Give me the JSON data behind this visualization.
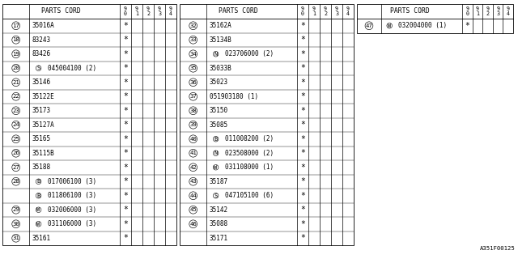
{
  "bg_color": "#ffffff",
  "text_color": "#000000",
  "footer": "A351F00125",
  "col_headers": [
    "9\n0",
    "9\n1",
    "9\n2",
    "9\n3",
    "9\n4"
  ],
  "tables": [
    {
      "rows": [
        {
          "num": "17",
          "part": "35016A",
          "star": true,
          "prefix": ""
        },
        {
          "num": "18",
          "part": "83243",
          "star": true,
          "prefix": ""
        },
        {
          "num": "19",
          "part": "83426",
          "star": true,
          "prefix": ""
        },
        {
          "num": "20",
          "part": "045004100 (2)",
          "star": true,
          "prefix": "S"
        },
        {
          "num": "21",
          "part": "35146",
          "star": true,
          "prefix": ""
        },
        {
          "num": "22",
          "part": "35122E",
          "star": true,
          "prefix": ""
        },
        {
          "num": "23",
          "part": "35173",
          "star": true,
          "prefix": ""
        },
        {
          "num": "24",
          "part": "35127A",
          "star": true,
          "prefix": ""
        },
        {
          "num": "25",
          "part": "35165",
          "star": true,
          "prefix": ""
        },
        {
          "num": "26",
          "part": "35115B",
          "star": true,
          "prefix": ""
        },
        {
          "num": "27",
          "part": "35188",
          "star": true,
          "prefix": ""
        },
        {
          "num": "28",
          "part": "017006100 (3)",
          "star": true,
          "prefix": "B"
        },
        {
          "num": "",
          "part": "011806100 (3)",
          "star": true,
          "prefix": "B"
        },
        {
          "num": "29",
          "part": "032006000 (3)",
          "star": true,
          "prefix": "W"
        },
        {
          "num": "30",
          "part": "031106000 (3)",
          "star": true,
          "prefix": "W"
        },
        {
          "num": "31",
          "part": "35161",
          "star": true,
          "prefix": ""
        }
      ]
    },
    {
      "rows": [
        {
          "num": "32",
          "part": "35162A",
          "star": true,
          "prefix": ""
        },
        {
          "num": "33",
          "part": "35134B",
          "star": true,
          "prefix": ""
        },
        {
          "num": "34",
          "part": "023706000 (2)",
          "star": true,
          "prefix": "N"
        },
        {
          "num": "35",
          "part": "35033B",
          "star": true,
          "prefix": ""
        },
        {
          "num": "36",
          "part": "35023",
          "star": true,
          "prefix": ""
        },
        {
          "num": "37",
          "part": "051903180 (1)",
          "star": true,
          "prefix": ""
        },
        {
          "num": "38",
          "part": "35150",
          "star": true,
          "prefix": ""
        },
        {
          "num": "39",
          "part": "35085",
          "star": true,
          "prefix": ""
        },
        {
          "num": "40",
          "part": "011008200 (2)",
          "star": true,
          "prefix": "B"
        },
        {
          "num": "41",
          "part": "023508000 (2)",
          "star": true,
          "prefix": "N"
        },
        {
          "num": "42",
          "part": "031108000 (1)",
          "star": true,
          "prefix": "W"
        },
        {
          "num": "43",
          "part": "35187",
          "star": true,
          "prefix": ""
        },
        {
          "num": "44",
          "part": "047105100 (6)",
          "star": true,
          "prefix": "S"
        },
        {
          "num": "45",
          "part": "35142",
          "star": true,
          "prefix": ""
        },
        {
          "num": "46",
          "part": "35088",
          "star": true,
          "prefix": ""
        },
        {
          "num": "",
          "part": "35171",
          "star": true,
          "prefix": ""
        }
      ]
    },
    {
      "rows": [
        {
          "num": "47",
          "part": "032004000 (1)",
          "star": true,
          "prefix": "W"
        }
      ]
    }
  ]
}
